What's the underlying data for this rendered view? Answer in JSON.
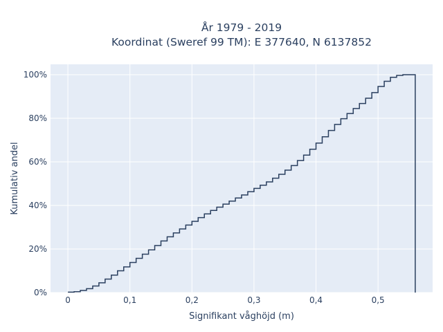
{
  "chart_data": {
    "type": "line",
    "line_shape": "step",
    "title_line1": "År 1979 - 2019",
    "title_line2": "Koordinat (Sweref 99 TM): E 377640, N 6137852",
    "xlabel": "Signifikant våghöjd (m)",
    "ylabel": "Kumulativ andel",
    "xlim": [
      -0.028,
      0.588
    ],
    "ylim": [
      0,
      1.0
    ],
    "x_ticks": [
      0,
      0.1,
      0.2,
      0.3,
      0.4,
      0.5
    ],
    "x_tick_labels": [
      "0",
      "0,1",
      "0,2",
      "0,3",
      "0,4",
      "0,5"
    ],
    "y_ticks": [
      0,
      0.2,
      0.4,
      0.6,
      0.8,
      1.0
    ],
    "y_tick_labels": [
      "0%",
      "20%",
      "40%",
      "60%",
      "80%",
      "100%"
    ],
    "grid": true,
    "colors": {
      "plot_bg": "#e5ecf6",
      "grid": "#ffffff",
      "line": "#2a3f5f"
    },
    "series": [
      {
        "x": [
          0,
          0.01,
          0.02,
          0.03,
          0.04,
          0.05,
          0.06,
          0.07,
          0.08,
          0.09,
          0.1,
          0.11,
          0.12,
          0.13,
          0.14,
          0.15,
          0.16,
          0.17,
          0.18,
          0.19,
          0.2,
          0.21,
          0.22,
          0.23,
          0.24,
          0.25,
          0.26,
          0.27,
          0.28,
          0.29,
          0.3,
          0.31,
          0.32,
          0.33,
          0.34,
          0.35,
          0.36,
          0.37,
          0.38,
          0.39,
          0.4,
          0.41,
          0.42,
          0.43,
          0.44,
          0.45,
          0.46,
          0.47,
          0.48,
          0.49,
          0.5,
          0.51,
          0.52,
          0.53,
          0.54,
          0.55,
          0.56
        ],
        "y": [
          0.002,
          0.004,
          0.01,
          0.018,
          0.03,
          0.045,
          0.062,
          0.08,
          0.1,
          0.118,
          0.138,
          0.157,
          0.176,
          0.196,
          0.216,
          0.237,
          0.256,
          0.274,
          0.292,
          0.31,
          0.327,
          0.344,
          0.361,
          0.377,
          0.392,
          0.406,
          0.42,
          0.434,
          0.448,
          0.463,
          0.478,
          0.493,
          0.508,
          0.525,
          0.543,
          0.562,
          0.583,
          0.606,
          0.631,
          0.658,
          0.686,
          0.715,
          0.744,
          0.772,
          0.798,
          0.822,
          0.845,
          0.868,
          0.892,
          0.918,
          0.946,
          0.97,
          0.988,
          0.997,
          1.0,
          1.0,
          0.0
        ]
      }
    ]
  }
}
